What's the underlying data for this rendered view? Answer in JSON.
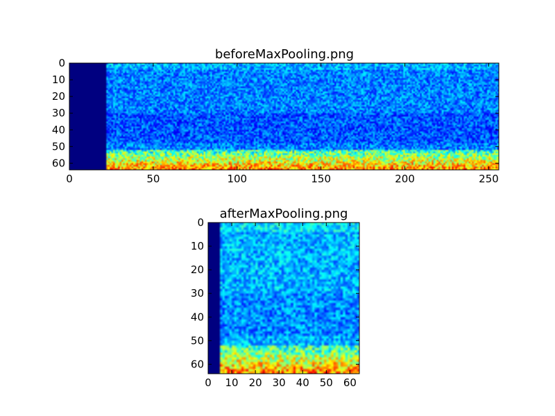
{
  "chart_data": [
    {
      "type": "heatmap",
      "title": "beforeMaxPooling.png",
      "xlim": [
        0,
        256
      ],
      "ylim": [
        64,
        0
      ],
      "xticks": [
        0,
        50,
        100,
        150,
        200,
        250
      ],
      "yticks": [
        0,
        10,
        20,
        30,
        40,
        50,
        60
      ],
      "columns": 256,
      "rows": 64,
      "colormap": "jet",
      "empty_band": {
        "x_from": 0,
        "x_to": 22,
        "value": 0.0
      },
      "bright_band_rows": [
        52,
        64
      ],
      "background_level": 0.25
    },
    {
      "type": "heatmap",
      "title": "afterMaxPooling.png",
      "xlim": [
        0,
        64
      ],
      "ylim": [
        64,
        0
      ],
      "xticks": [
        0,
        10,
        20,
        30,
        40,
        50,
        60
      ],
      "yticks": [
        0,
        10,
        20,
        30,
        40,
        50,
        60
      ],
      "columns": 64,
      "rows": 64,
      "colormap": "jet",
      "empty_band": {
        "x_from": 0,
        "x_to": 5,
        "value": 0.0
      },
      "bright_band_rows": [
        52,
        64
      ],
      "background_level": 0.3
    }
  ],
  "colors": {
    "background": "#ffffff",
    "empty_band": "#00007f"
  }
}
